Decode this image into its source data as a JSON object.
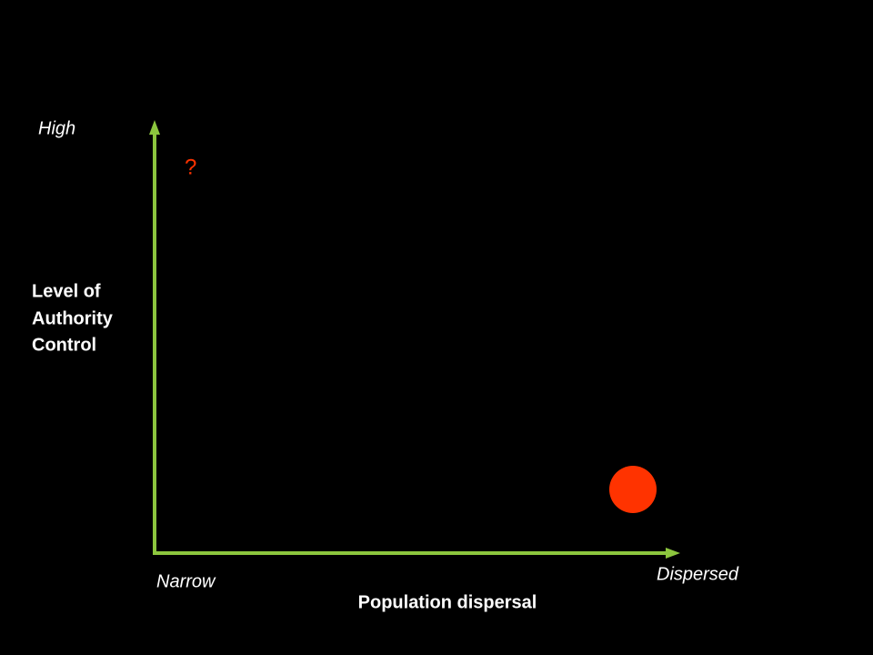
{
  "y_axis": {
    "high_label": "High",
    "title_lines": [
      "Level of",
      "Authority",
      "Control"
    ]
  },
  "x_axis": {
    "low_label": "Narrow",
    "high_label": "Dispersed",
    "title": "Population dispersal"
  },
  "question_mark": "?"
}
